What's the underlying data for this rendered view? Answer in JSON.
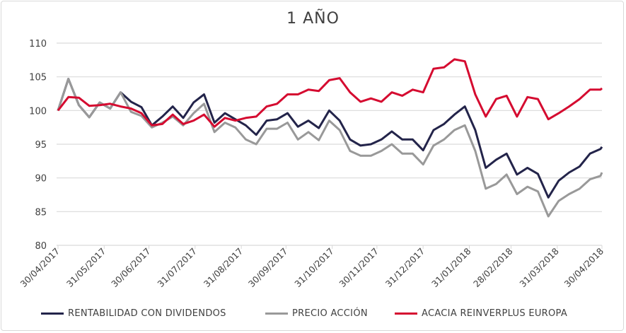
{
  "chart_data": {
    "type": "line",
    "title": "1 AÑO",
    "xlabel": "",
    "ylabel": "",
    "ylim": [
      80,
      110
    ],
    "yticks": [
      "80",
      "85",
      "90",
      "95",
      "100",
      "105",
      "110"
    ],
    "xlim": [
      "2017-04-30",
      "2018-04-30"
    ],
    "xticks": [
      {
        "date": "2017-04-30",
        "label": "30/04/2017"
      },
      {
        "date": "2017-05-31",
        "label": "31/05/2017"
      },
      {
        "date": "2017-06-30",
        "label": "30/06/2017"
      },
      {
        "date": "2017-07-31",
        "label": "31/07/2017"
      },
      {
        "date": "2017-08-31",
        "label": "31/08/2017"
      },
      {
        "date": "2017-09-30",
        "label": "30/09/2017"
      },
      {
        "date": "2017-10-31",
        "label": "31/10/2017"
      },
      {
        "date": "2017-11-30",
        "label": "30/11/2017"
      },
      {
        "date": "2017-12-31",
        "label": "31/12/2017"
      },
      {
        "date": "2018-01-31",
        "label": "31/01/2018"
      },
      {
        "date": "2018-02-28",
        "label": "28/02/2018"
      },
      {
        "date": "2018-03-31",
        "label": "31/03/2018"
      },
      {
        "date": "2018-04-30",
        "label": "30/04/2018"
      }
    ],
    "grid": true,
    "legend": "bottom",
    "x": [
      "2017-04-30",
      "2017-05-07",
      "2017-05-14",
      "2017-05-21",
      "2017-05-28",
      "2017-06-04",
      "2017-06-11",
      "2017-06-18",
      "2017-06-25",
      "2017-07-02",
      "2017-07-09",
      "2017-07-16",
      "2017-07-23",
      "2017-07-30",
      "2017-08-06",
      "2017-08-13",
      "2017-08-20",
      "2017-08-27",
      "2017-09-03",
      "2017-09-10",
      "2017-09-17",
      "2017-09-24",
      "2017-10-01",
      "2017-10-08",
      "2017-10-15",
      "2017-10-22",
      "2017-10-29",
      "2017-11-05",
      "2017-11-12",
      "2017-11-19",
      "2017-11-26",
      "2017-12-03",
      "2017-12-10",
      "2017-12-17",
      "2017-12-24",
      "2017-12-31",
      "2018-01-07",
      "2018-01-14",
      "2018-01-21",
      "2018-01-28",
      "2018-02-04",
      "2018-02-11",
      "2018-02-18",
      "2018-02-25",
      "2018-03-04",
      "2018-03-11",
      "2018-03-18",
      "2018-03-25",
      "2018-04-01",
      "2018-04-08",
      "2018-04-15",
      "2018-04-22",
      "2018-04-29",
      "2018-04-30"
    ],
    "series": [
      {
        "name": "RENTABILIDAD CON DIVIDENDOS",
        "color": "#23244a",
        "values": [
          100,
          104.7,
          100.8,
          99,
          101.2,
          100.3,
          102.7,
          101.3,
          100.5,
          97.8,
          99.1,
          100.6,
          98.9,
          101.2,
          102.4,
          98.2,
          99.6,
          98.7,
          97.8,
          96.4,
          98.5,
          98.7,
          99.6,
          97.6,
          98.5,
          97.4,
          100,
          98.5,
          95.7,
          94.8,
          95,
          95.7,
          96.9,
          95.7,
          95.7,
          94.1,
          97.1,
          98,
          99.4,
          100.6,
          97.1,
          91.5,
          92.7,
          93.6,
          90.5,
          91.5,
          90.6,
          87.1,
          89.6,
          90.8,
          91.7,
          93.6,
          94.3,
          94.6
        ]
      },
      {
        "name": "PRECIO ACCIÓN",
        "color": "#999999",
        "values": [
          100,
          104.7,
          100.8,
          99,
          101.2,
          100.3,
          102.7,
          99.8,
          99.2,
          97.5,
          98.2,
          99.1,
          97.8,
          99.6,
          101,
          96.8,
          98.2,
          97.5,
          95.7,
          95,
          97.3,
          97.3,
          98.2,
          95.7,
          96.8,
          95.6,
          98.5,
          97.1,
          94,
          93.3,
          93.3,
          94,
          95,
          93.6,
          93.6,
          92,
          94.8,
          95.7,
          97.1,
          97.8,
          94,
          88.4,
          89.1,
          90.5,
          87.6,
          88.7,
          88,
          84.3,
          86.6,
          87.6,
          88.4,
          89.8,
          90.3,
          90.8
        ]
      },
      {
        "name": "ACACIA REINVERPLUS EUROPA",
        "color": "#d50b30",
        "values": [
          100,
          102,
          101.9,
          100.7,
          100.8,
          101,
          100.6,
          100.3,
          99.6,
          97.8,
          98,
          99.4,
          98,
          98.5,
          99.4,
          97.6,
          98.9,
          98.5,
          98.9,
          99.1,
          100.6,
          101,
          102.4,
          102.4,
          103.1,
          102.9,
          104.5,
          104.8,
          102.7,
          101.3,
          101.8,
          101.3,
          102.7,
          102.2,
          103.1,
          102.7,
          106.2,
          106.4,
          107.6,
          107.3,
          102.4,
          99.1,
          101.7,
          102.2,
          99.1,
          102,
          101.7,
          98.7,
          99.6,
          100.6,
          101.7,
          103.1,
          103.1,
          103.3
        ]
      }
    ],
    "gridline_color": "#d9d9d9"
  }
}
